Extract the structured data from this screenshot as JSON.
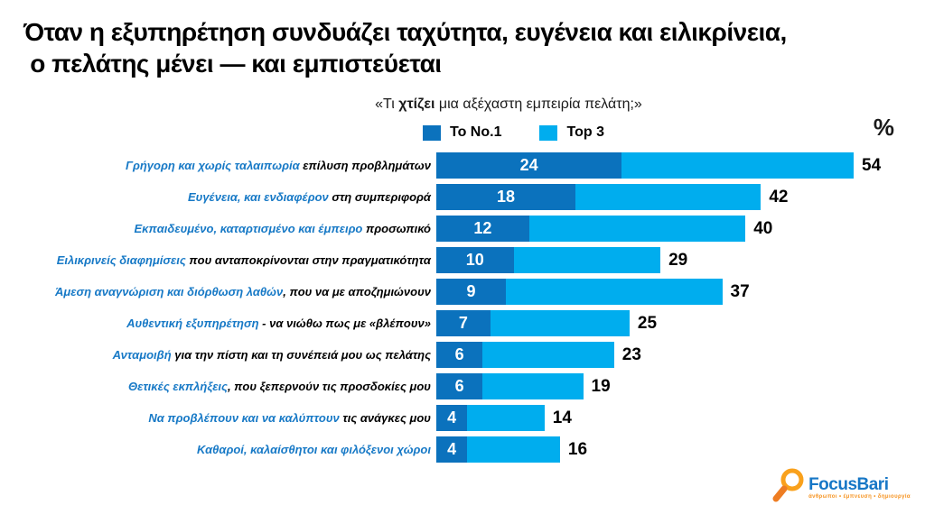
{
  "title": {
    "line1": "Όταν η εξυπηρέτηση συνδυάζει ταχύτητα, ευγένεια και ειλικρίνεια,",
    "line2": " ο πελάτης μένει — και εμπιστεύεται"
  },
  "subtitle": {
    "prefix": "«Τι ",
    "bold": "χτίζει",
    "suffix": " μια αξέχαστη εμπειρία πελάτη;»"
  },
  "legend": {
    "no1_label": "Το No.1",
    "top3_label": "Top 3",
    "percent_symbol": "%"
  },
  "colors": {
    "no1_bar": "#0b72bd",
    "top3_bar": "#00adee",
    "label_blue": "#1779c6",
    "label_black": "#000000",
    "logo_blue": "#1777c6",
    "logo_orange": "#f9a11c"
  },
  "chart_data": {
    "type": "bar",
    "orientation": "horizontal",
    "stacked": true,
    "title": "«Τι χτίζει μια αξέχαστη εμπειρία πελάτη;»",
    "unit": "%",
    "legend_position": "top",
    "xlim": [
      0,
      54
    ],
    "series": [
      {
        "name": "Το No.1",
        "values": [
          24,
          18,
          12,
          10,
          9,
          7,
          6,
          6,
          4,
          4
        ]
      },
      {
        "name": "Top 3",
        "values": [
          54,
          42,
          40,
          29,
          37,
          25,
          23,
          19,
          14,
          16
        ]
      }
    ],
    "categories": [
      "Γρήγορη και χωρίς ταλαιπωρία επίλυση προβλημάτων",
      "Ευγένεια, και ενδιαφέρον στη συμπεριφορά",
      "Εκπαιδευμένο, καταρτισμένο και έμπειρο προσωπικό",
      "Ειλικρινείς διαφημίσεις που ανταποκρίνονται στην πραγματικότητα",
      "Άμεση αναγνώριση και διόρθωση λαθών, που να με αποζημιώνουν",
      "Αυθεντική εξυπηρέτηση - να νιώθω πως με «βλέπουν»",
      "Ανταμοιβή για την πίστη και τη συνέπειά μου ως πελάτης",
      "Θετικές εκπλήξεις, που ξεπερνούν τις προσδοκίες μου",
      "Να προβλέπουν και να καλύπτουν τις ανάγκες μου",
      "Καθαροί, καλαίσθητοι και φιλόξενοι χώροι"
    ],
    "rows": [
      {
        "label_blue": "Γρήγορη και χωρίς ταλαιπωρία",
        "label_black": " επίλυση προβλημάτων",
        "no1": 24,
        "top3": 54
      },
      {
        "label_blue": "Ευγένεια, και ενδιαφέρον",
        "label_black": " στη συμπεριφορά",
        "no1": 18,
        "top3": 42
      },
      {
        "label_blue": "Εκπαιδευμένο, καταρτισμένο και έμπειρο",
        "label_black": " προσωπικό",
        "no1": 12,
        "top3": 40
      },
      {
        "label_blue": "Ειλικρινείς διαφημίσεις",
        "label_black": " που ανταποκρίνονται στην πραγματικότητα",
        "no1": 10,
        "top3": 29
      },
      {
        "label_blue": "Άμεση αναγνώριση και διόρθωση λαθών",
        "label_black": ", που να με αποζημιώνουν",
        "no1": 9,
        "top3": 37
      },
      {
        "label_blue": "Αυθεντική εξυπηρέτηση",
        "label_black": " - να νιώθω πως με «βλέπουν»",
        "no1": 7,
        "top3": 25
      },
      {
        "label_blue": "Ανταμοιβή",
        "label_black": " για την πίστη και τη συνέπειά μου ως πελάτης",
        "no1": 6,
        "top3": 23
      },
      {
        "label_blue": "Θετικές εκπλήξεις",
        "label_black": ", που ξεπερνούν τις προσδοκίες μου",
        "no1": 6,
        "top3": 19
      },
      {
        "label_blue": "Να προβλέπουν και να καλύπτουν",
        "label_black": " τις ανάγκες μου",
        "no1": 4,
        "top3": 14
      },
      {
        "label_blue": "Καθαροί, καλαίσθητοι και φιλόξενοι χώροι",
        "label_black": "",
        "no1": 4,
        "top3": 16
      }
    ]
  },
  "logo": {
    "name": "FocusBari",
    "tagline": "άνθρωποι • έμπνευση • δημιουργία"
  }
}
